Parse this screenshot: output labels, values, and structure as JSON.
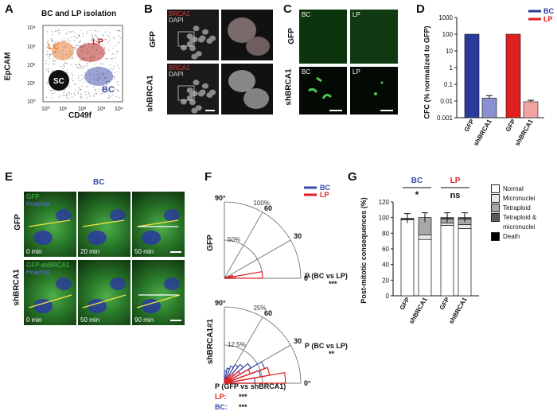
{
  "panels": {
    "A": {
      "letter": "A",
      "title": "BC and LP isolation",
      "ylabel": "EpCAM",
      "xlabel": "CD49f",
      "yticks": [
        "10⁴",
        "10³",
        "10²",
        "10¹",
        "10⁰"
      ],
      "xticks": [
        "10⁰",
        "10¹",
        "10²",
        "10³",
        "10⁴"
      ],
      "gates": [
        "LC",
        "LP",
        "SC",
        "BC"
      ],
      "colors": {
        "LC": "#e8823a",
        "LP": "#c0282a",
        "SC": "#111111",
        "BC": "#3a4aa0"
      }
    },
    "B": {
      "letter": "B",
      "rows": [
        "GFP",
        "shBRCA1"
      ],
      "stain1": "BRCA1",
      "stain2": "DAPI"
    },
    "C": {
      "letter": "C",
      "rows": [
        "GFP",
        "shBRCA1"
      ],
      "cols": [
        "BC",
        "LP"
      ]
    },
    "D": {
      "letter": "D",
      "ylabel": "CFC (% normalized to GFP)",
      "legend": [
        {
          "label": "BC",
          "color": "#2c3a9c"
        },
        {
          "label": "LP",
          "color": "#e02020"
        }
      ],
      "yticks": [
        "1000",
        "100",
        "10",
        "1",
        "0.1",
        "0.01",
        "0.001"
      ]
    },
    "E": {
      "letter": "E",
      "title": "BC",
      "rows": [
        {
          "label": "GFP",
          "stain_top": "GFP",
          "stain_bottom": "Hoechst",
          "times": [
            "0 min",
            "20 min",
            "50 min"
          ]
        },
        {
          "label": "shBRCA1",
          "stain_top": "GFP-shBRCA1",
          "stain_bottom": "Hoechst",
          "times": [
            "0 min",
            "50 min",
            "90 min"
          ]
        }
      ]
    },
    "F": {
      "letter": "F",
      "legend": [
        {
          "label": "BC",
          "color": "#3a4aa8"
        },
        {
          "label": "LP",
          "color": "#e02020"
        }
      ],
      "top": {
        "row_label": "GFP",
        "angles": [
          "90°",
          "60",
          "30",
          "0°"
        ],
        "radii": [
          "100%",
          "50%"
        ],
        "p_text": "P (BC vs LP)",
        "p_value": "***"
      },
      "bottom": {
        "row_label": "shBRCA1#1",
        "angles": [
          "90°",
          "60",
          "30",
          "0°"
        ],
        "radii": [
          "25%",
          "12.5%"
        ],
        "p_text": "P (BC vs LP)",
        "p_value": "**"
      },
      "comparison": {
        "title": "P (GFP vs shBRCA1)",
        "rows": [
          {
            "label": "LP:",
            "value": "***",
            "color": "#e02020"
          },
          {
            "label": "BC:",
            "value": "***",
            "color": "#3a4aa8"
          }
        ]
      }
    },
    "G": {
      "letter": "G",
      "ylabel": "Post-mitotic consequences (%)",
      "groups": [
        {
          "label": "BC",
          "color": "#3a4aa8",
          "sig": "*"
        },
        {
          "label": "LP",
          "color": "#e02020",
          "sig": "ns"
        }
      ],
      "yticks": [
        "120",
        "100",
        "80",
        "60",
        "40",
        "20",
        "0"
      ],
      "legend": [
        {
          "label": "Normal",
          "color": "#ffffff"
        },
        {
          "label": "Micronuclei",
          "color": "#e8e8e8"
        },
        {
          "label": "Tetraploid",
          "color": "#a8a8a8"
        },
        {
          "label": "Tetraploid &",
          "color": "#5a5a5a"
        },
        {
          "label": "micronuclei",
          "color": null
        },
        {
          "label": "Death",
          "color": "#000000"
        }
      ]
    }
  },
  "chart_data": [
    {
      "type": "bar",
      "title": "",
      "ylabel": "CFC (% normalized to GFP)",
      "yscale": "log",
      "ylim": [
        0.001,
        1000
      ],
      "categories": [
        "GFP",
        "shBRCA1",
        "GFP",
        "shBRCA1"
      ],
      "groups": [
        "BC",
        "BC",
        "LP",
        "LP"
      ],
      "values": [
        100,
        0.015,
        100,
        0.009
      ],
      "errors": [
        0,
        0.006,
        0,
        0.002
      ],
      "colors": [
        "#2c3a9c",
        "#8b91cf",
        "#e02020",
        "#f4a3a3"
      ]
    },
    {
      "type": "bar",
      "stacked": true,
      "ylabel": "Post-mitotic consequences (%)",
      "ylim": [
        0,
        120
      ],
      "categories": [
        "GFP",
        "shBRCA1",
        "GFP",
        "shBRCA1"
      ],
      "groups": [
        "BC",
        "BC",
        "LP",
        "LP"
      ],
      "series": [
        {
          "name": "Normal",
          "values": [
            97,
            72,
            90,
            86
          ]
        },
        {
          "name": "Micronuclei",
          "values": [
            1,
            6,
            3,
            5
          ]
        },
        {
          "name": "Tetraploid",
          "values": [
            1,
            22,
            5,
            7
          ]
        },
        {
          "name": "Tetraploid & micronuclei",
          "values": [
            0,
            0,
            2,
            2
          ]
        },
        {
          "name": "Death",
          "values": [
            0,
            0,
            0,
            0
          ]
        }
      ]
    },
    {
      "type": "rose",
      "row": "GFP",
      "angle_bins_deg": [
        0,
        10,
        20,
        30,
        40,
        50,
        60,
        70,
        80,
        90
      ],
      "series": [
        {
          "name": "BC",
          "values": [
            5,
            2,
            1,
            1,
            0,
            0,
            0,
            0,
            0
          ]
        },
        {
          "name": "LP",
          "values": [
            18,
            4,
            1,
            0,
            0,
            0,
            0,
            0,
            0
          ]
        }
      ]
    },
    {
      "type": "rose",
      "row": "shBRCA1#1",
      "angle_bins_deg": [
        0,
        10,
        20,
        30,
        40,
        50,
        60,
        70,
        80,
        90
      ],
      "series": [
        {
          "name": "BC",
          "values": [
            10,
            12,
            14,
            10,
            8,
            7,
            6,
            5,
            4
          ]
        },
        {
          "name": "LP",
          "values": [
            20,
            15,
            9,
            6,
            4,
            3,
            2,
            1,
            1
          ]
        }
      ]
    }
  ]
}
